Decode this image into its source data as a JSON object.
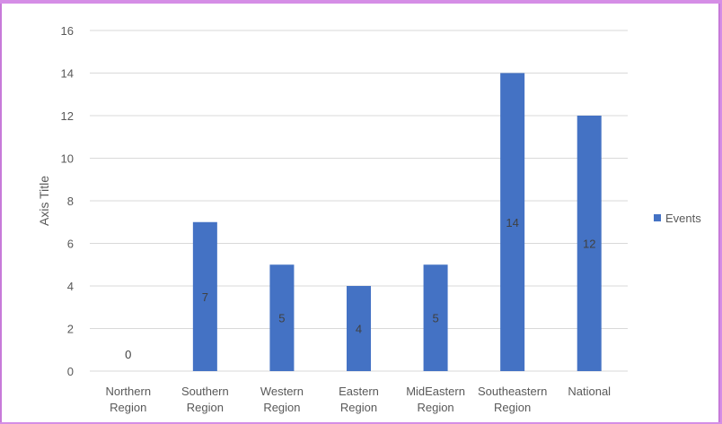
{
  "chart_data": {
    "type": "bar",
    "categories": [
      [
        "Northern",
        "Region"
      ],
      [
        "Southern",
        "Region"
      ],
      [
        "Western",
        "Region"
      ],
      [
        "Eastern",
        "Region"
      ],
      [
        "MidEastern",
        "Region"
      ],
      [
        "Southeastern",
        "Region"
      ],
      [
        "National"
      ]
    ],
    "series": [
      {
        "name": "Events",
        "values": [
          0,
          7,
          5,
          4,
          5,
          14,
          12
        ],
        "color": "#4472c4"
      }
    ],
    "ylabel": "Axis Title",
    "ylim": [
      0,
      16
    ],
    "yticks": [
      0,
      2,
      4,
      6,
      8,
      10,
      12,
      14,
      16
    ],
    "grid": true,
    "legend": "right",
    "data_labels": true
  }
}
